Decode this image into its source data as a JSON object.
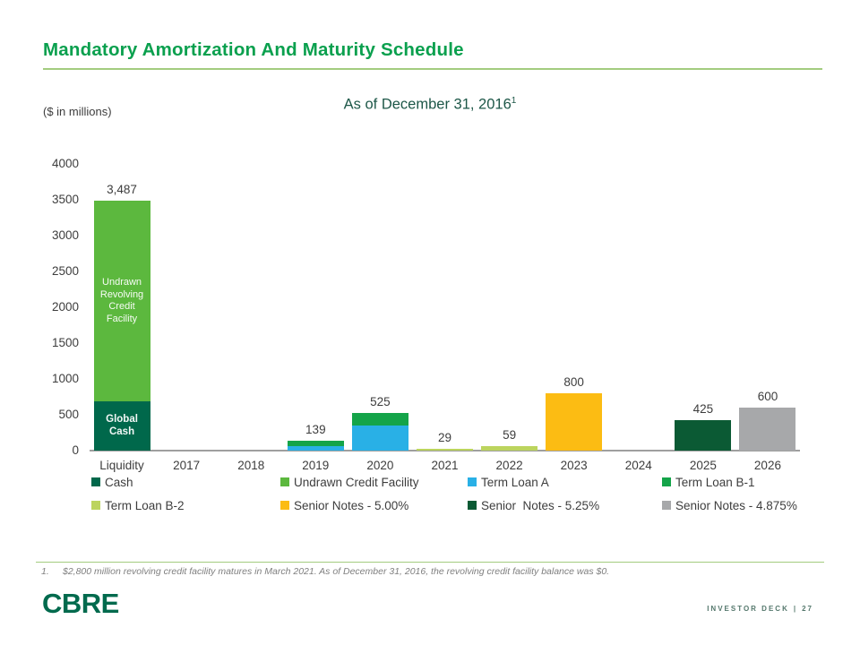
{
  "slide": {
    "title": "Mandatory Amortization And Maturity Schedule",
    "units_label": "($ in millions)",
    "subtitle": "As of December 31, 2016",
    "subtitle_superscript": "1",
    "footnote_number": "1.",
    "footnote_text": "$2,800 million revolving credit facility matures in March 2021. As of December 31, 2016, the revolving credit facility balance was $0.",
    "logo": "CBRE",
    "footer_label": "INVESTOR DECK",
    "footer_separator": "|",
    "footer_page": "27"
  },
  "colors": {
    "title_green": "#0aa04e",
    "underline_green": "#a3cc7f",
    "subtitle_green": "#1d5748",
    "text_dark": "#3d3d3d",
    "axis_gray": "#9f9f9f",
    "footnote_gray": "#7f7f7f",
    "logo_green": "#006a4d",
    "footer_green": "#55786d"
  },
  "chart_data": {
    "type": "bar",
    "stacked": true,
    "grid": false,
    "legend_position": "bottom",
    "ylim": [
      0,
      4000
    ],
    "yticks": [
      0,
      500,
      1000,
      1500,
      2000,
      2500,
      3000,
      3500,
      4000
    ],
    "categories": [
      "Liquidity",
      "2017",
      "2018",
      "2019",
      "2020",
      "2021",
      "2022",
      "2023",
      "2024",
      "2025",
      "2026"
    ],
    "series": [
      {
        "name": "Cash",
        "color": "#00684b",
        "values": [
          687,
          0,
          0,
          0,
          0,
          0,
          0,
          0,
          0,
          0,
          0
        ]
      },
      {
        "name": "Undrawn Credit Facility",
        "color": "#5cb83e",
        "values": [
          2800,
          0,
          0,
          0,
          0,
          0,
          0,
          0,
          0,
          0,
          0
        ]
      },
      {
        "name": "Term Loan A",
        "color": "#29b0e6",
        "values": [
          0,
          0,
          0,
          64,
          350,
          0,
          0,
          0,
          0,
          0,
          0
        ]
      },
      {
        "name": "Term Loan B-1",
        "color": "#14a449",
        "values": [
          0,
          0,
          0,
          75,
          175,
          0,
          0,
          0,
          0,
          0,
          0
        ]
      },
      {
        "name": "Term Loan B-2",
        "color": "#bcd45e",
        "values": [
          0,
          0,
          0,
          0,
          0,
          29,
          59,
          0,
          0,
          0,
          0
        ]
      },
      {
        "name": "Senior Notes - 5.00%",
        "color": "#fcbc13",
        "values": [
          0,
          0,
          0,
          0,
          0,
          0,
          0,
          800,
          0,
          0,
          0
        ]
      },
      {
        "name": "Senior  Notes - 5.25%",
        "color": "#0b5a34",
        "values": [
          0,
          0,
          0,
          0,
          0,
          0,
          0,
          0,
          0,
          425,
          0
        ]
      },
      {
        "name": "Senior Notes - 4.875%",
        "color": "#a7a8aa",
        "values": [
          0,
          0,
          0,
          0,
          0,
          0,
          0,
          0,
          0,
          0,
          600
        ]
      }
    ],
    "total_labels": [
      "3,487",
      "",
      "",
      "139",
      "525",
      "29",
      "59",
      "800",
      "",
      "425",
      "600"
    ],
    "bar_annotations": [
      {
        "category_index": 0,
        "series": "Undrawn Credit Facility",
        "lines": [
          "Undrawn",
          "Revolving",
          "Credit",
          "Facility"
        ],
        "bold": false
      },
      {
        "category_index": 0,
        "series": "Cash",
        "lines": [
          "Global",
          "Cash"
        ],
        "bold": true
      }
    ]
  }
}
